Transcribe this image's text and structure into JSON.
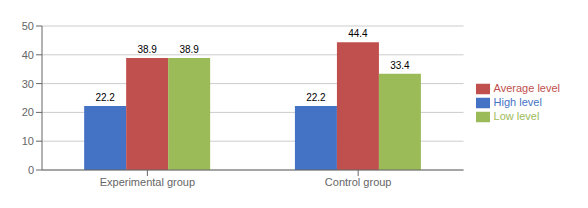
{
  "chart_data": {
    "type": "bar",
    "categories": [
      "Experimental group",
      "Control group"
    ],
    "series": [
      {
        "name": "High level",
        "color": "#4472C4",
        "values": [
          22.2,
          22.2
        ]
      },
      {
        "name": "Average level",
        "color": "#C0504D",
        "values": [
          38.9,
          44.4
        ]
      },
      {
        "name": "Low level",
        "color": "#9BBB59",
        "values": [
          38.9,
          33.4
        ]
      }
    ],
    "ylim": [
      0,
      50
    ],
    "yticks": [
      0,
      10,
      20,
      30,
      40,
      50
    ],
    "grid": true,
    "legend": "right",
    "data_labels": true
  }
}
